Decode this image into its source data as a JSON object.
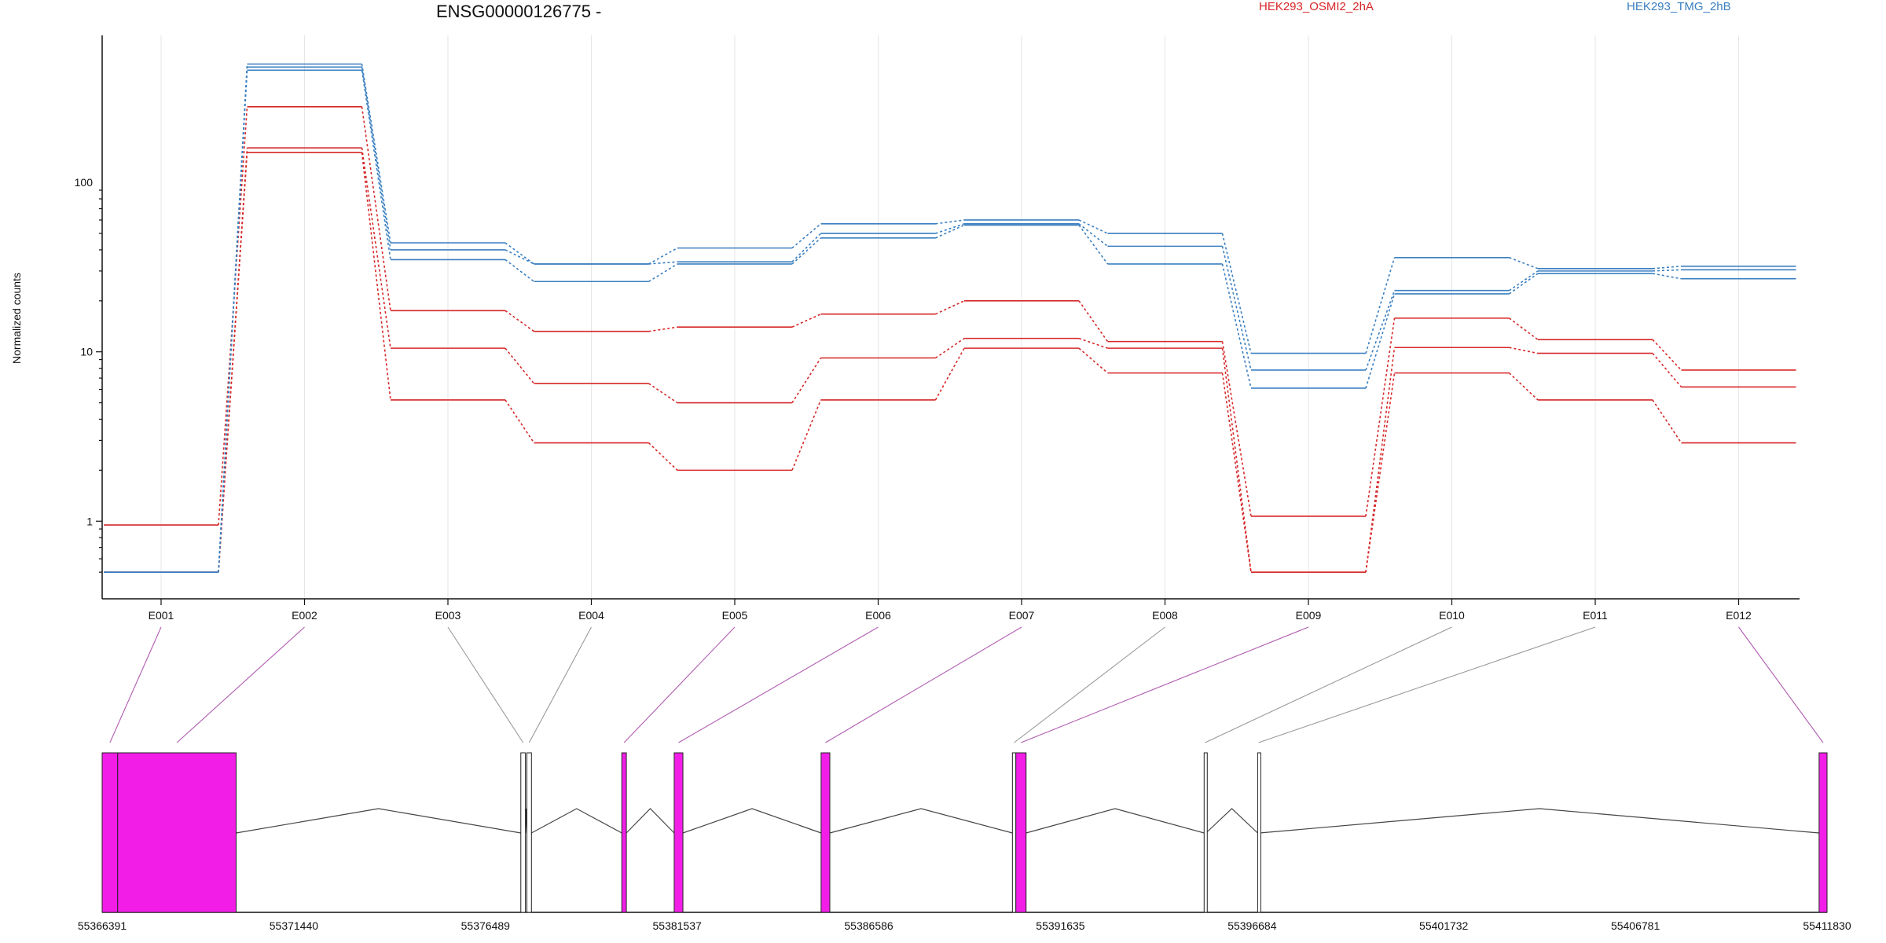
{
  "chart_data": {
    "type": "line",
    "title": "ENSG00000126775 -",
    "ylabel": "Normalized counts",
    "xlabel": "",
    "y_scale": "log",
    "ylim": [
      0.45,
      700
    ],
    "yticks": [
      1,
      10,
      100
    ],
    "ytick_labels": [
      "1",
      "10",
      "100"
    ],
    "grid": "vertical",
    "categories": [
      "E001",
      "E002",
      "E003",
      "E004",
      "E005",
      "E006",
      "E007",
      "E008",
      "E009",
      "E010",
      "E011",
      "E012"
    ],
    "legend": [
      {
        "name": "HEK293_OSMI2_2hA",
        "color": "#d62728"
      },
      {
        "name": "HEK293_TMG_2hB",
        "color": "#3a7fc0"
      }
    ],
    "series": [
      {
        "group": "HEK293_OSMI2_2hA",
        "color": "#d62728",
        "values": [
          0.95,
          280,
          17.5,
          13.2,
          14.0,
          16.7,
          20.0,
          11.5,
          1.07,
          15.8,
          11.8,
          7.8
        ]
      },
      {
        "group": "HEK293_OSMI2_2hA",
        "color": "#d62728",
        "values": [
          0.5,
          160,
          10.5,
          6.5,
          5.0,
          9.2,
          12.0,
          10.5,
          0.5,
          10.6,
          9.8,
          6.2
        ]
      },
      {
        "group": "HEK293_OSMI2_2hA",
        "color": "#d62728",
        "values": [
          0.5,
          150,
          5.2,
          2.9,
          2.0,
          5.2,
          10.5,
          7.5,
          0.5,
          7.5,
          5.2,
          2.9
        ]
      },
      {
        "group": "HEK293_TMG_2hB",
        "color": "#3a7fc0",
        "values": [
          0.5,
          500,
          44,
          33,
          41,
          57,
          60,
          50,
          9.8,
          36,
          31,
          32
        ]
      },
      {
        "group": "HEK293_TMG_2hB",
        "color": "#3a7fc0",
        "values": [
          0.5,
          480,
          40,
          33,
          34,
          50,
          57,
          42,
          7.8,
          23,
          30,
          30.5
        ]
      },
      {
        "group": "HEK293_TMG_2hB",
        "color": "#3a7fc0",
        "values": [
          0.5,
          460,
          35,
          26,
          33,
          47,
          56,
          33,
          6.1,
          22,
          29,
          27
        ]
      }
    ],
    "gene_model": {
      "coordinate_labels": [
        "55366391",
        "55371440",
        "55376489",
        "55381537",
        "55386586",
        "55391635",
        "55396684",
        "55401732",
        "55406781",
        "55411830"
      ],
      "coordinate_values": [
        55366391,
        55371440,
        55376489,
        55381537,
        55386586,
        55391635,
        55396684,
        55401732,
        55406781,
        55411830
      ],
      "exon_highlight_color": "#f21ee8",
      "exon_plain_color": "#ffffff",
      "exons": [
        {
          "id": "E001",
          "start": 55366391,
          "end": 55366800,
          "highlighted": true
        },
        {
          "id": "E002",
          "start": 55366800,
          "end": 55369920,
          "highlighted": true
        },
        {
          "id": "E003",
          "start": 55377420,
          "end": 55377540,
          "highlighted": false
        },
        {
          "id": "E004",
          "start": 55377580,
          "end": 55377700,
          "highlighted": false
        },
        {
          "id": "E005",
          "start": 55380080,
          "end": 55380200,
          "highlighted": true
        },
        {
          "id": "E006",
          "start": 55381460,
          "end": 55381690,
          "highlighted": true
        },
        {
          "id": "E007",
          "start": 55385330,
          "end": 55385560,
          "highlighted": true
        },
        {
          "id": "E008",
          "start": 55390370,
          "end": 55390460,
          "highlighted": false
        },
        {
          "id": "E009",
          "start": 55390460,
          "end": 55390730,
          "highlighted": true
        },
        {
          "id": "E010",
          "start": 55395420,
          "end": 55395470,
          "highlighted": false
        },
        {
          "id": "E011",
          "start": 55396830,
          "end": 55396880,
          "highlighted": false
        },
        {
          "id": "E012",
          "start": 55411620,
          "end": 55411830,
          "highlighted": true
        }
      ]
    }
  }
}
